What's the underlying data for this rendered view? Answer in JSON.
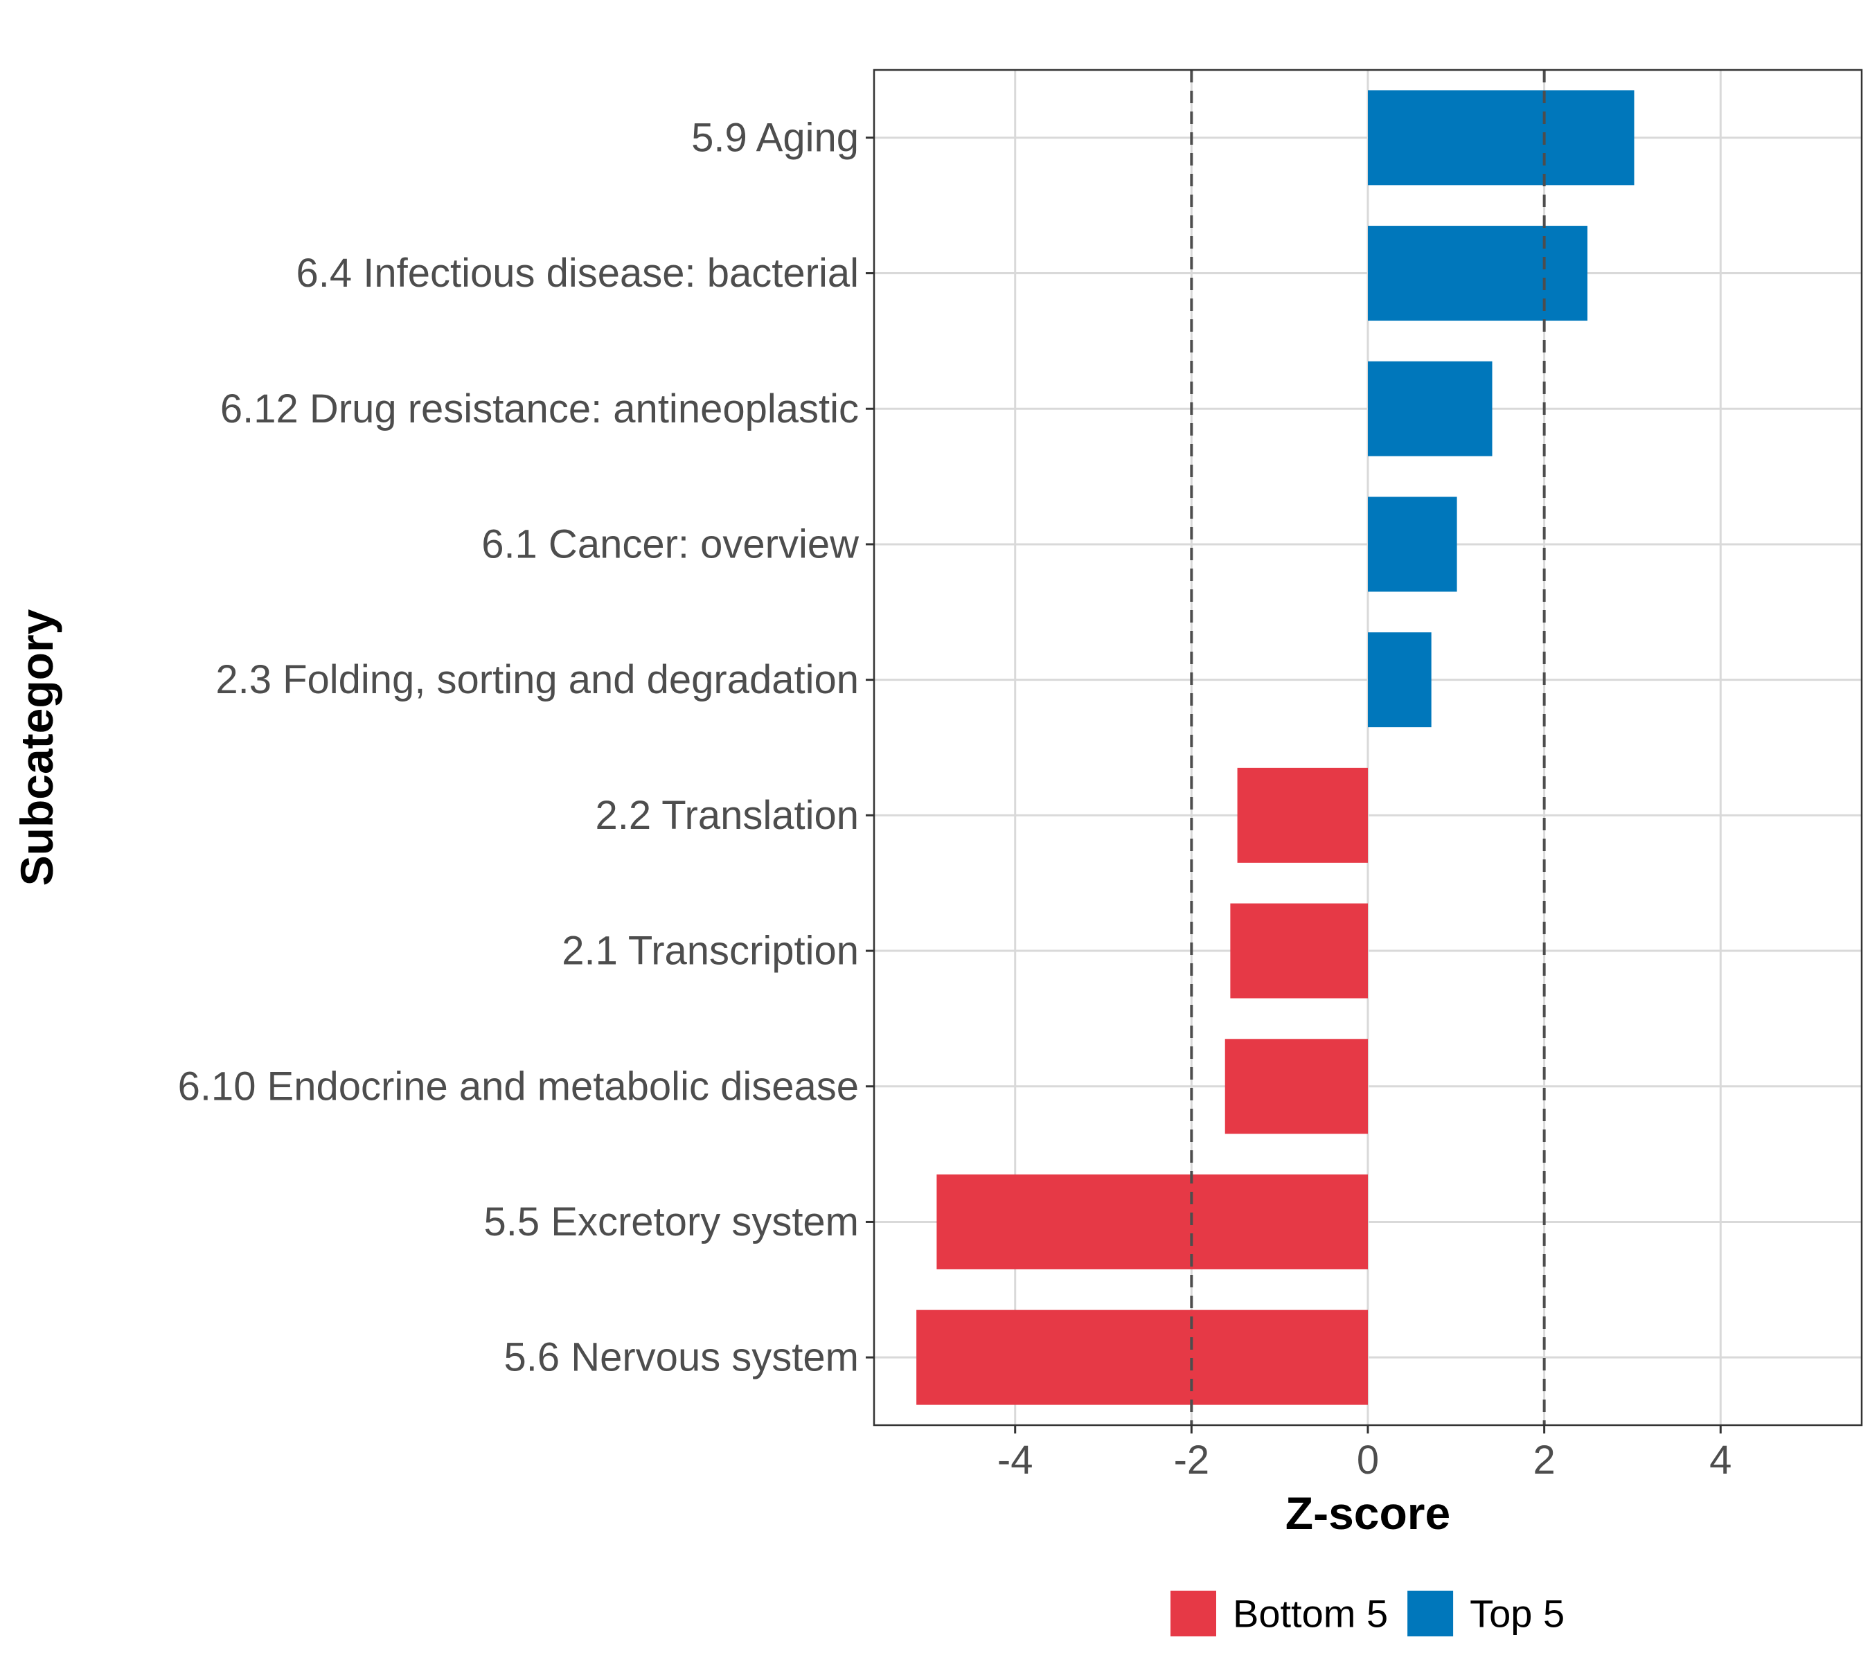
{
  "chart_data": {
    "type": "bar",
    "orientation": "horizontal",
    "title": "",
    "xlabel": "Z-score",
    "ylabel": "Subcategory",
    "xlim": [
      -5.6,
      5.6
    ],
    "x_ticks": [
      -4,
      -2,
      0,
      2,
      4
    ],
    "x_tick_labels": [
      "-4",
      "-2",
      "0",
      "2",
      "4"
    ],
    "reference_lines": [
      -2,
      2
    ],
    "grid": true,
    "legend_position": "bottom",
    "colors": {
      "Top 5": "#0077bb",
      "Bottom 5": "#e63946",
      "reference": "#4d4d4d",
      "grid": "#d9d9d9"
    },
    "legend": [
      {
        "group": "Bottom 5",
        "label": "Bottom 5"
      },
      {
        "group": "Top 5",
        "label": "Top 5"
      }
    ],
    "categories": [
      "5.9 Aging",
      "6.4 Infectious disease: bacterial",
      "6.12 Drug resistance: antineoplastic",
      "6.1 Cancer: overview",
      "2.3 Folding, sorting and degradation",
      "2.2 Translation",
      "2.1 Transcription",
      "6.10 Endocrine and metabolic disease",
      "5.5 Excretory system",
      "5.6 Nervous system"
    ],
    "values": [
      3.02,
      2.49,
      1.41,
      1.01,
      0.72,
      -1.48,
      -1.56,
      -1.62,
      -4.89,
      -5.12
    ],
    "groups": [
      "Top 5",
      "Top 5",
      "Top 5",
      "Top 5",
      "Top 5",
      "Bottom 5",
      "Bottom 5",
      "Bottom 5",
      "Bottom 5",
      "Bottom 5"
    ]
  }
}
